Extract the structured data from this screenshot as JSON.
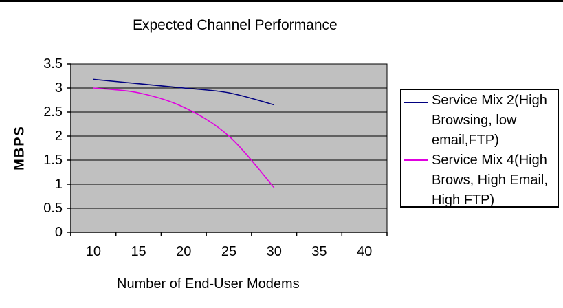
{
  "page": {
    "top_border_color": "#000000",
    "background_color": "#ffffff"
  },
  "chart_data": {
    "type": "line",
    "title": "Expected Channel Performance",
    "xlabel": "Number of End-User Modems",
    "ylabel": "MBPS",
    "categories": [
      10,
      15,
      20,
      25,
      30,
      35,
      40
    ],
    "yticks": [
      3.5,
      3,
      2.5,
      2,
      1.5,
      1,
      0.5,
      0
    ],
    "ylim": [
      0,
      3.5
    ],
    "grid": "horizontal",
    "gridline_color": "#000000",
    "plot_bg": "#c0c0c0",
    "legend_position": "right",
    "series": [
      {
        "name": "Service Mix 2(High Browsing, low email,FTP)",
        "legend_lines": [
          "Service Mix 2(High",
          "Browsing, low",
          "email,FTP)"
        ],
        "color": "#000080",
        "x": [
          10,
          15,
          20,
          25,
          30
        ],
        "values": [
          3.18,
          3.09,
          3.0,
          2.9,
          2.65
        ]
      },
      {
        "name": "Service Mix 4(High Brows, High Email, High FTP)",
        "legend_lines": [
          "Service Mix 4(High",
          "Brows, High Email,",
          "High FTP)"
        ],
        "color": "#e000e0",
        "x": [
          10,
          15,
          20,
          25,
          30
        ],
        "values": [
          3.0,
          2.9,
          2.6,
          2.0,
          0.93
        ]
      }
    ]
  }
}
